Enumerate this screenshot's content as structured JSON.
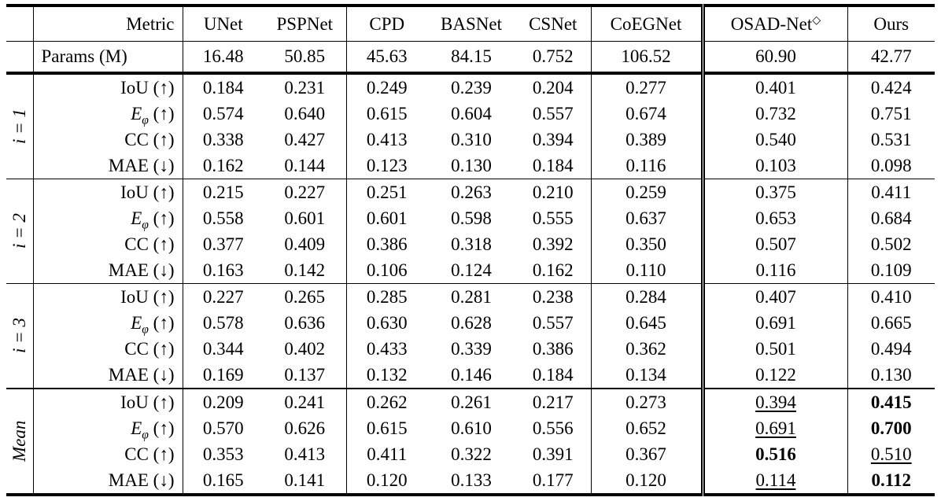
{
  "table": {
    "metric_label": "Metric",
    "params_label": "Params (M)",
    "columns": [
      {
        "label": "UNet"
      },
      {
        "label": "PSPNet"
      },
      {
        "label": "CPD"
      },
      {
        "label": "BASNet"
      },
      {
        "label": "CSNet"
      },
      {
        "label": "CoEGNet"
      },
      {
        "label": "OSAD-Net",
        "sup": "◇"
      },
      {
        "label": "Ours"
      }
    ],
    "params": [
      "16.48",
      "50.85",
      "45.63",
      "84.15",
      "0.752",
      "106.52",
      "60.90",
      "42.77"
    ],
    "groups": [
      {
        "label": "i = 1",
        "rows": [
          {
            "metric": {
              "base": "IoU",
              "italic": false,
              "arrow": "(↑)"
            },
            "values": [
              "0.184",
              "0.231",
              "0.249",
              "0.239",
              "0.204",
              "0.277",
              "0.401",
              "0.424"
            ]
          },
          {
            "metric": {
              "base": "E",
              "italic": true,
              "sub": "φ",
              "arrow": "(↑)"
            },
            "values": [
              "0.574",
              "0.640",
              "0.615",
              "0.604",
              "0.557",
              "0.674",
              "0.732",
              "0.751"
            ]
          },
          {
            "metric": {
              "base": "CC",
              "italic": false,
              "arrow": "(↑)"
            },
            "values": [
              "0.338",
              "0.427",
              "0.413",
              "0.310",
              "0.394",
              "0.389",
              "0.540",
              "0.531"
            ]
          },
          {
            "metric": {
              "base": "MAE",
              "italic": false,
              "arrow": "(↓)"
            },
            "values": [
              "0.162",
              "0.144",
              "0.123",
              "0.130",
              "0.184",
              "0.116",
              "0.103",
              "0.098"
            ]
          }
        ]
      },
      {
        "label": "i = 2",
        "rows": [
          {
            "metric": {
              "base": "IoU",
              "italic": false,
              "arrow": "(↑)"
            },
            "values": [
              "0.215",
              "0.227",
              "0.251",
              "0.263",
              "0.210",
              "0.259",
              "0.375",
              "0.411"
            ]
          },
          {
            "metric": {
              "base": "E",
              "italic": true,
              "sub": "φ",
              "arrow": "(↑)"
            },
            "values": [
              "0.558",
              "0.601",
              "0.601",
              "0.598",
              "0.555",
              "0.637",
              "0.653",
              "0.684"
            ]
          },
          {
            "metric": {
              "base": "CC",
              "italic": false,
              "arrow": "(↑)"
            },
            "values": [
              "0.377",
              "0.409",
              "0.386",
              "0.318",
              "0.392",
              "0.350",
              "0.507",
              "0.502"
            ]
          },
          {
            "metric": {
              "base": "MAE",
              "italic": false,
              "arrow": "(↓)"
            },
            "values": [
              "0.163",
              "0.142",
              "0.106",
              "0.124",
              "0.162",
              "0.110",
              "0.116",
              "0.109"
            ]
          }
        ]
      },
      {
        "label": "i = 3",
        "rows": [
          {
            "metric": {
              "base": "IoU",
              "italic": false,
              "arrow": "(↑)"
            },
            "values": [
              "0.227",
              "0.265",
              "0.285",
              "0.281",
              "0.238",
              "0.284",
              "0.407",
              "0.410"
            ]
          },
          {
            "metric": {
              "base": "E",
              "italic": true,
              "sub": "φ",
              "arrow": "(↑)"
            },
            "values": [
              "0.578",
              "0.636",
              "0.630",
              "0.628",
              "0.557",
              "0.645",
              "0.691",
              "0.665"
            ]
          },
          {
            "metric": {
              "base": "CC",
              "italic": false,
              "arrow": "(↑)"
            },
            "values": [
              "0.344",
              "0.402",
              "0.433",
              "0.339",
              "0.386",
              "0.362",
              "0.501",
              "0.494"
            ]
          },
          {
            "metric": {
              "base": "MAE",
              "italic": false,
              "arrow": "(↓)"
            },
            "values": [
              "0.169",
              "0.137",
              "0.132",
              "0.146",
              "0.184",
              "0.134",
              "0.122",
              "0.130"
            ]
          }
        ]
      },
      {
        "label": "Mean",
        "mean": true,
        "rows": [
          {
            "metric": {
              "base": "IoU",
              "italic": false,
              "arrow": "(↑)"
            },
            "values": [
              "0.209",
              "0.241",
              "0.262",
              "0.261",
              "0.217",
              "0.273",
              {
                "v": "0.394",
                "style": "underline"
              },
              {
                "v": "0.415",
                "style": "bold"
              }
            ]
          },
          {
            "metric": {
              "base": "E",
              "italic": true,
              "sub": "φ",
              "arrow": "(↑)"
            },
            "values": [
              "0.570",
              "0.626",
              "0.615",
              "0.610",
              "0.556",
              "0.652",
              {
                "v": "0.691",
                "style": "underline"
              },
              {
                "v": "0.700",
                "style": "bold"
              }
            ]
          },
          {
            "metric": {
              "base": "CC",
              "italic": false,
              "arrow": "(↑)"
            },
            "values": [
              "0.353",
              "0.413",
              "0.411",
              "0.322",
              "0.391",
              "0.367",
              {
                "v": "0.516",
                "style": "bold"
              },
              {
                "v": "0.510",
                "style": "underline"
              }
            ]
          },
          {
            "metric": {
              "base": "MAE",
              "italic": false,
              "arrow": "(↓)"
            },
            "values": [
              "0.165",
              "0.141",
              "0.120",
              "0.133",
              "0.177",
              "0.120",
              {
                "v": "0.114",
                "style": "underline"
              },
              {
                "v": "0.112",
                "style": "bold"
              }
            ]
          }
        ]
      }
    ]
  }
}
